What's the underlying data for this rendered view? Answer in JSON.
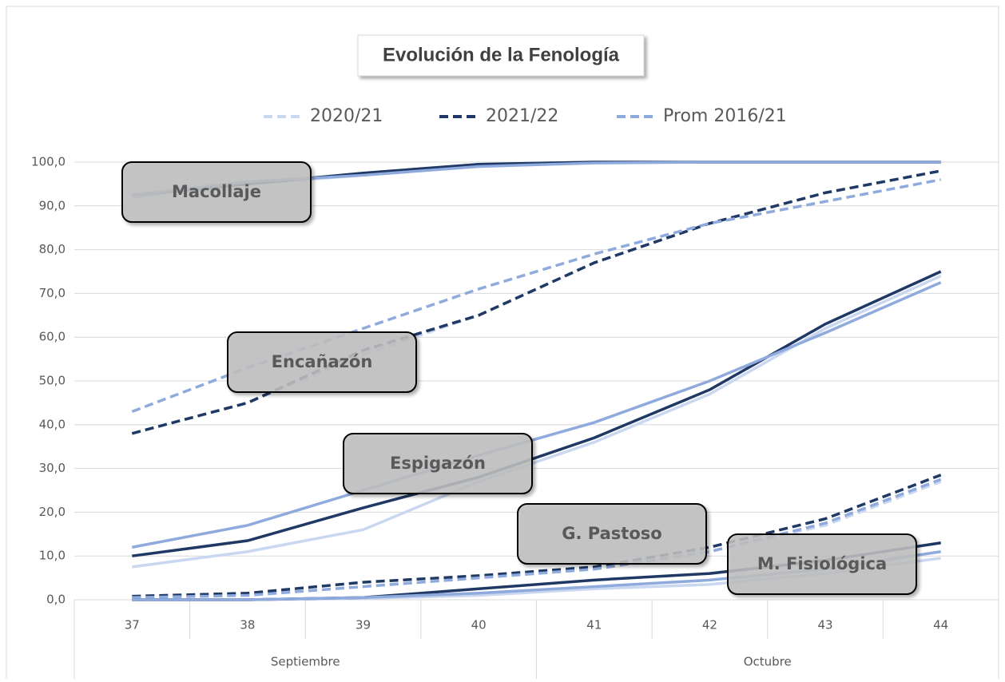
{
  "chart_data": {
    "type": "line",
    "title": "Evolución de la Fenología",
    "categories": [
      "37",
      "38",
      "39",
      "40",
      "41",
      "42",
      "43",
      "44"
    ],
    "category_groups": [
      {
        "label": "Septiembre",
        "count": 4
      },
      {
        "label": "Octubre",
        "count": 4
      }
    ],
    "series": [
      {
        "name": "2020/21",
        "color": "#c9d7f0"
      },
      {
        "name": "2021/22",
        "color": "#1f3864"
      },
      {
        "name": "Prom 2016/21",
        "color": "#8faadc"
      }
    ],
    "stages": [
      {
        "label": "Macollaje",
        "dashed": false,
        "values": [
          [
            92,
            95,
            97,
            99.5,
            100,
            100,
            100,
            100
          ],
          [
            92.5,
            95,
            97.5,
            99.5,
            100,
            100,
            100,
            100
          ],
          [
            92.5,
            95.5,
            97,
            99,
            99.8,
            100,
            100,
            100
          ]
        ]
      },
      {
        "label": "Encañazón",
        "dashed": true,
        "values": [
          [
            38,
            45,
            56,
            65,
            77,
            86,
            93,
            98
          ],
          [
            38,
            45,
            57,
            65,
            77,
            86,
            93,
            98
          ],
          [
            43,
            53,
            62,
            71,
            79,
            86,
            91,
            96
          ]
        ]
      },
      {
        "label": "Espigazón",
        "dashed": false,
        "values": [
          [
            7.5,
            11,
            16,
            27,
            36,
            47,
            62,
            74
          ],
          [
            10,
            13.5,
            21,
            28,
            37,
            48,
            63,
            75
          ],
          [
            12,
            17,
            25,
            33,
            40.5,
            50,
            61,
            72.5
          ]
        ]
      },
      {
        "label": "G. Pastoso",
        "dashed": true,
        "values": [
          [
            0.5,
            1,
            3,
            5,
            7,
            11,
            17,
            27
          ],
          [
            0.8,
            1.5,
            4,
            5.5,
            7.5,
            12,
            18.5,
            28.5
          ],
          [
            0.5,
            1,
            3,
            5,
            7,
            11,
            17.5,
            27.5
          ]
        ]
      },
      {
        "label": "M. Fisiológica",
        "dashed": false,
        "values": [
          [
            0,
            0,
            0.3,
            1,
            2.5,
            3.5,
            6,
            9.5
          ],
          [
            0,
            0,
            0.5,
            2.5,
            4.5,
            6,
            9,
            13
          ],
          [
            0,
            0,
            0.5,
            1.5,
            3,
            4.5,
            7,
            11
          ]
        ]
      }
    ],
    "ylim": [
      0,
      100
    ],
    "yticks": [
      {
        "value": 0,
        "label": "0,0"
      },
      {
        "value": 10,
        "label": "10,0"
      },
      {
        "value": 20,
        "label": "20,0"
      },
      {
        "value": 30,
        "label": "30,0"
      },
      {
        "value": 40,
        "label": "40,0"
      },
      {
        "value": 50,
        "label": "50,0"
      },
      {
        "value": 60,
        "label": "60,0"
      },
      {
        "value": 70,
        "label": "70,0"
      },
      {
        "value": 80,
        "label": "80,0"
      },
      {
        "value": 90,
        "label": "90,0"
      },
      {
        "value": 100,
        "label": "100,0"
      }
    ],
    "grid": true
  }
}
